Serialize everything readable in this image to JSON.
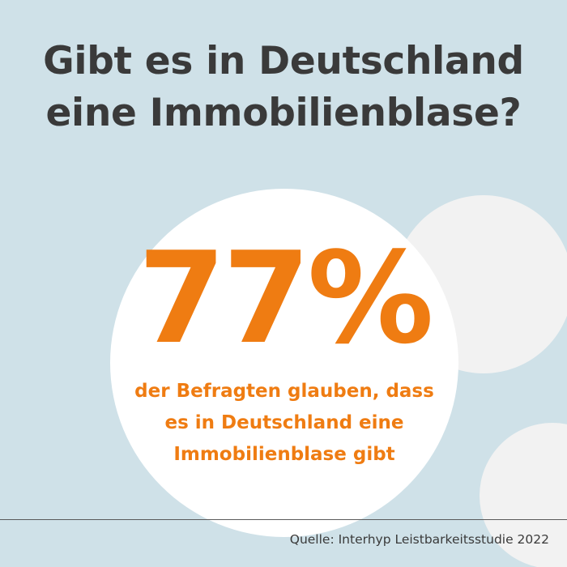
{
  "headline": {
    "line1": "Gibt es in Deutschland",
    "line2": "eine Immobilienblase?"
  },
  "stat": {
    "value": "77%",
    "description_line1": "der Befragten glauben, dass",
    "description_line2": "es in Deutschland eine",
    "description_line3": "Immobilienblase gibt"
  },
  "footer": {
    "source": "Quelle: Interhyp Leistbarkeitsstudie 2022"
  },
  "colors": {
    "background": "#cfe1e8",
    "headline_text": "#3a3a3a",
    "accent_orange": "#ef7c12",
    "circle_white": "#ffffff",
    "decor_circle": "#f2f2f2"
  }
}
